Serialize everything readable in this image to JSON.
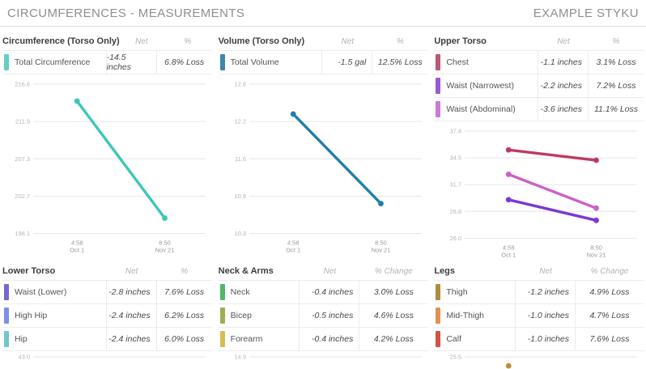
{
  "header": {
    "title": "CIRCUMFERENCES - MEASUREMENTS",
    "account": "EXAMPLE STYKU"
  },
  "panels": [
    {
      "title": "Circumference (Torso Only)",
      "net_header": "Net",
      "pct_header": "%",
      "rows": [
        {
          "label": "Total Circumference",
          "net": "-14.5 inches",
          "pct": "6.8% Loss",
          "color": "#62cfc4"
        }
      ]
    },
    {
      "title": "Volume (Torso Only)",
      "net_header": "Net",
      "pct_header": "%",
      "rows": [
        {
          "label": "Total Volume",
          "net": "-1.5 gal",
          "pct": "12.5% Loss",
          "color": "#3e86ad"
        }
      ]
    },
    {
      "title": "Upper Torso",
      "net_header": "Net",
      "pct_header": "%",
      "rows": [
        {
          "label": "Chest",
          "net": "-1.1 inches",
          "pct": "3.1% Loss",
          "color": "#b85a72"
        },
        {
          "label": "Waist (Narrowest)",
          "net": "-2.2 inches",
          "pct": "7.2% Loss",
          "color": "#9b59d4"
        },
        {
          "label": "Waist (Abdominal)",
          "net": "-3.6 inches",
          "pct": "11.1% Loss",
          "color": "#ca7ad7"
        }
      ]
    },
    {
      "title": "Lower Torso",
      "net_header": "Net",
      "pct_header": "%",
      "rows": [
        {
          "label": "Waist (Lower)",
          "net": "-2.8 inches",
          "pct": "7.6% Loss",
          "color": "#7468cf"
        },
        {
          "label": "High Hip",
          "net": "-2.4 inches",
          "pct": "6.2% Loss",
          "color": "#7e8fe6"
        },
        {
          "label": "Hip",
          "net": "-2.4 inches",
          "pct": "6.0% Loss",
          "color": "#6fc8c5"
        }
      ]
    },
    {
      "title": "Neck & Arms",
      "net_header": "Net",
      "pct_header": "% Change",
      "rows": [
        {
          "label": "Neck",
          "net": "-0.4 inches",
          "pct": "3.0% Loss",
          "color": "#56b469"
        },
        {
          "label": "Bicep",
          "net": "-0.5 inches",
          "pct": "4.6% Loss",
          "color": "#a0ad52"
        },
        {
          "label": "Forearm",
          "net": "-0.4 inches",
          "pct": "4.2% Loss",
          "color": "#d6bd4e"
        }
      ]
    },
    {
      "title": "Legs",
      "net_header": "Net",
      "pct_header": "% Change",
      "rows": [
        {
          "label": "Thigh",
          "net": "-1.2 inches",
          "pct": "4.9% Loss",
          "color": "#b08d3e"
        },
        {
          "label": "Mid-Thigh",
          "net": "-1.0 inches",
          "pct": "4.7% Loss",
          "color": "#e2904e"
        },
        {
          "label": "Calf",
          "net": "-1.0 inches",
          "pct": "7.6% Loss",
          "color": "#d05348"
        }
      ]
    }
  ],
  "chart_data": [
    {
      "type": "line",
      "title": "Circumference (Torso Only)",
      "grid": true,
      "yticks": [
        216.6,
        211.9,
        207.3,
        202.7,
        198.1
      ],
      "ylim": [
        198.1,
        216.6
      ],
      "x_labels": [
        [
          "4:58",
          "Oct 1"
        ],
        [
          "8:50",
          "Nov 21"
        ]
      ],
      "series": [
        {
          "name": "Total Circumference",
          "color": "#3ec6b9",
          "values": [
            214.5,
            200.0
          ]
        }
      ]
    },
    {
      "type": "line",
      "title": "Volume (Torso Only)",
      "grid": true,
      "yticks": [
        12.8,
        12.2,
        11.6,
        10.9,
        10.3
      ],
      "ylim": [
        10.3,
        12.8
      ],
      "x_labels": [
        [
          "4:58",
          "Oct 1"
        ],
        [
          "8:50",
          "Nov 21"
        ]
      ],
      "series": [
        {
          "name": "Total Volume",
          "color": "#217fa8",
          "values": [
            12.3,
            10.8
          ]
        }
      ]
    },
    {
      "type": "line",
      "title": "Upper Torso",
      "grid": true,
      "yticks": [
        37.4,
        34.5,
        31.7,
        28.8,
        26.0
      ],
      "ylim": [
        26.0,
        37.4
      ],
      "x_labels": [
        [
          "4:58",
          "Oct 1"
        ],
        [
          "8:50",
          "Nov 21"
        ]
      ],
      "series": [
        {
          "name": "Chest",
          "color": "#bf3a60",
          "values": [
            35.4,
            34.3
          ]
        },
        {
          "name": "Waist (Abdominal)",
          "color": "#ca62c8",
          "values": [
            32.8,
            29.2
          ]
        },
        {
          "name": "Waist (Narrowest)",
          "color": "#7f35d6",
          "values": [
            30.1,
            27.9
          ]
        }
      ]
    },
    {
      "type": "line",
      "title": "Lower Torso",
      "clipped": true,
      "yticks": [
        43.0
      ],
      "series": []
    },
    {
      "type": "line",
      "title": "Neck & Arms",
      "clipped": true,
      "yticks": [
        14.9
      ],
      "series": []
    },
    {
      "type": "line",
      "title": "Legs",
      "clipped": true,
      "yticks": [
        25.5
      ],
      "series": [],
      "partial_point": {
        "series": "Thigh",
        "x_index": 0,
        "color": "#c28a3a"
      }
    }
  ]
}
